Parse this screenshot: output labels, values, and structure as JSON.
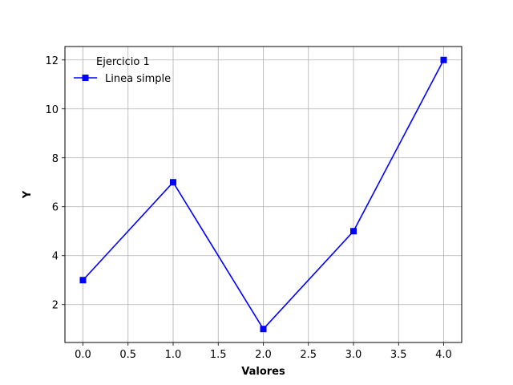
{
  "chart_data": {
    "type": "line",
    "title": "",
    "xlabel": "Valores",
    "ylabel": "Y",
    "xlim": [
      -0.2,
      4.2
    ],
    "ylim": [
      0.45,
      12.55
    ],
    "xticks": [
      0.0,
      0.5,
      1.0,
      1.5,
      2.0,
      2.5,
      3.0,
      3.5,
      4.0
    ],
    "xtick_labels": [
      "0.0",
      "0.5",
      "1.0",
      "1.5",
      "2.0",
      "2.5",
      "3.0",
      "3.5",
      "4.0"
    ],
    "yticks": [
      2,
      4,
      6,
      8,
      10,
      12
    ],
    "ytick_labels": [
      "2",
      "4",
      "6",
      "8",
      "10",
      "12"
    ],
    "grid": true,
    "legend": {
      "title": "Ejercicio 1",
      "placement": "top-left"
    },
    "series": [
      {
        "name": "Linea simple",
        "color": "#0000ff",
        "marker": "square",
        "x": [
          0,
          1,
          2,
          3,
          4
        ],
        "y": [
          3,
          7,
          1,
          5,
          12
        ]
      }
    ]
  }
}
